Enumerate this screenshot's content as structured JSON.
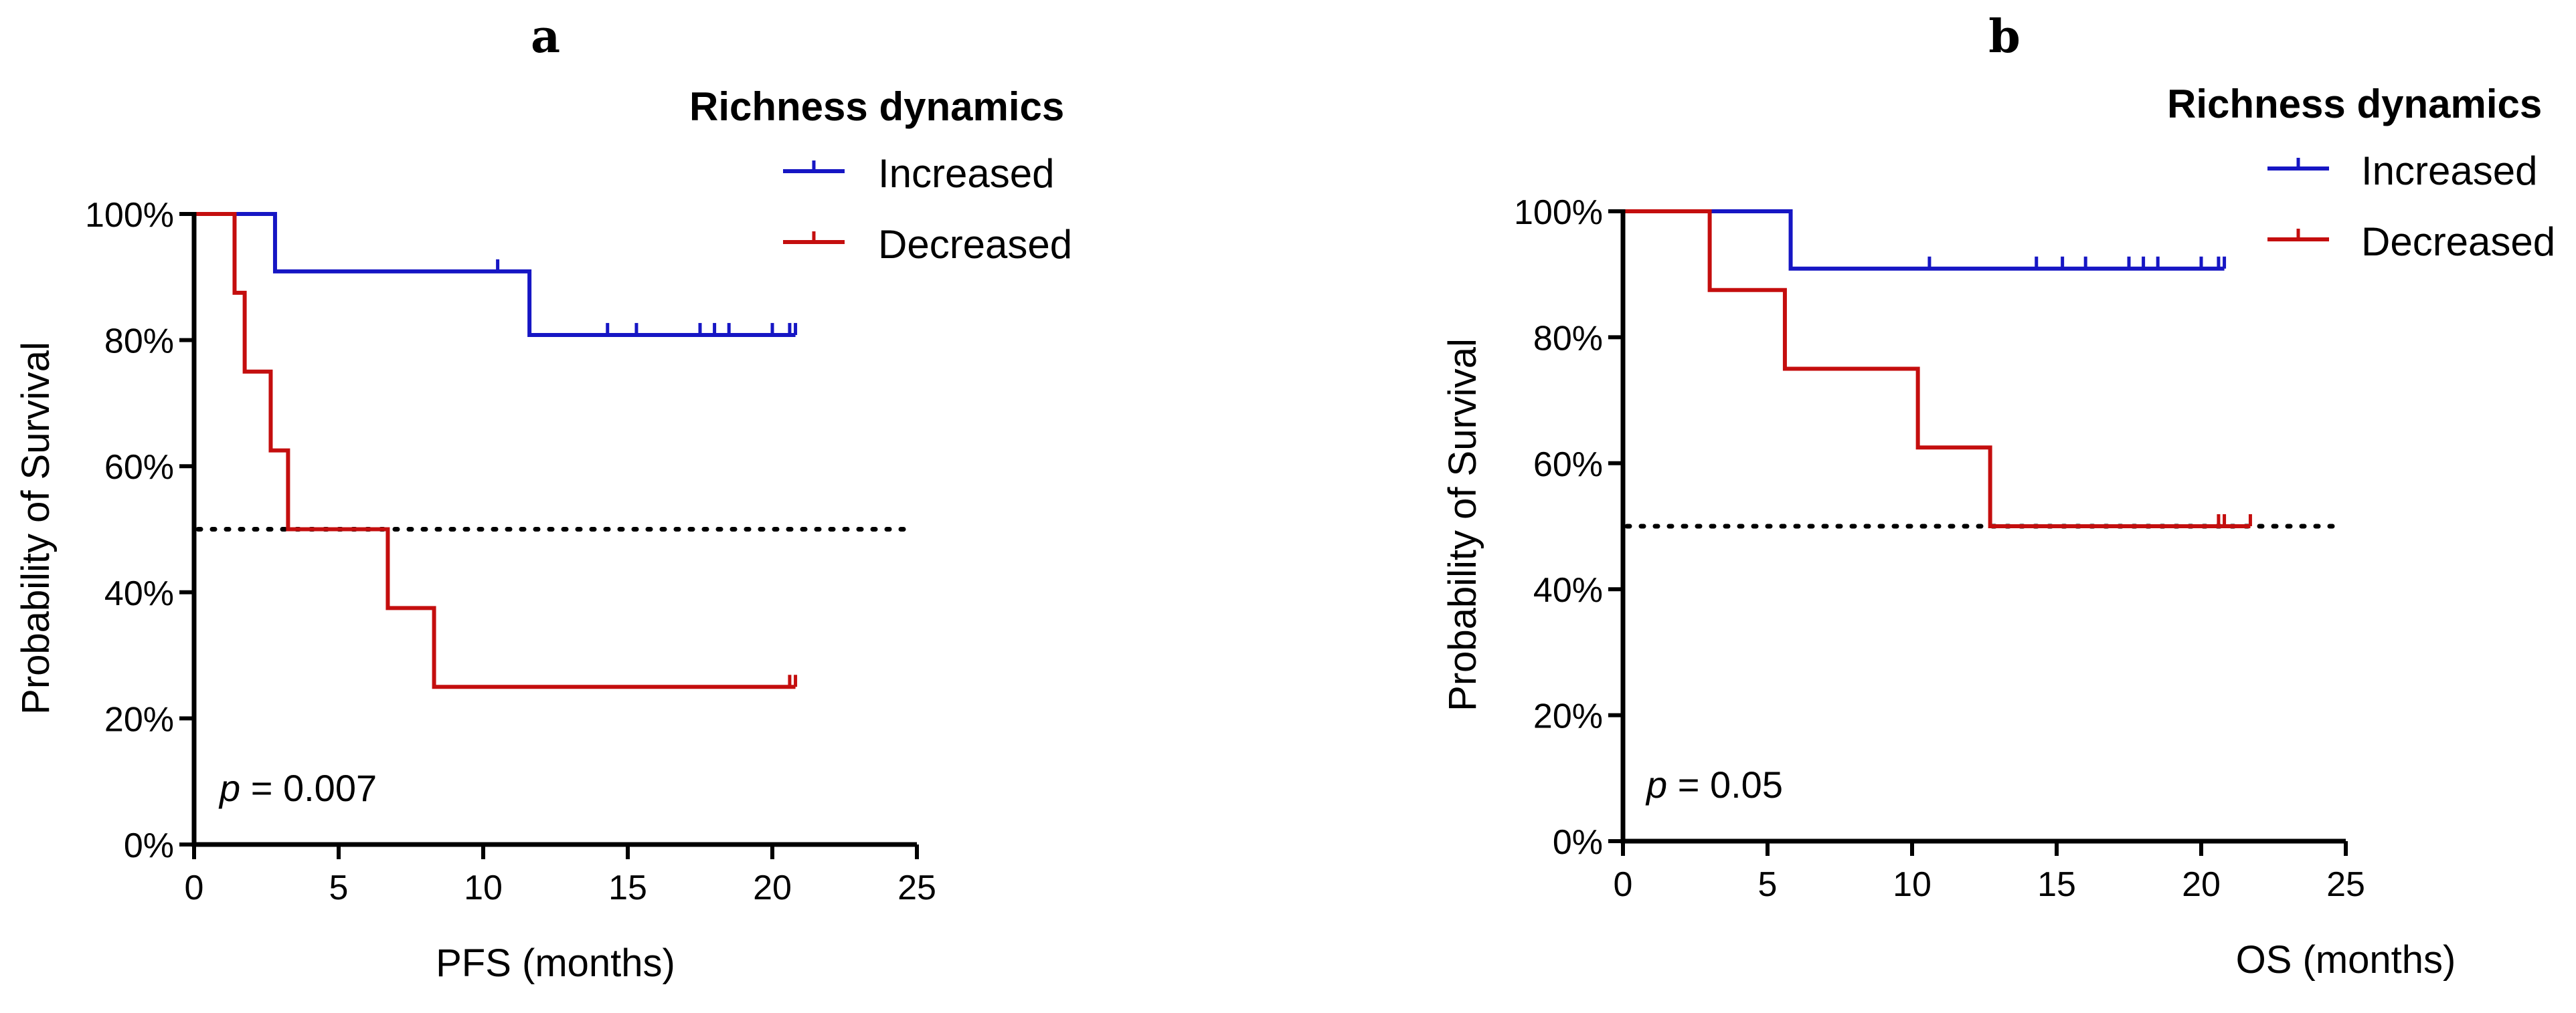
{
  "chart_data": [
    {
      "type": "line",
      "subtype": "kaplan-meier",
      "panel_label": "a",
      "title": "",
      "xlabel": "PFS (months)",
      "ylabel": "Probability of Survival",
      "xlim": [
        0,
        25
      ],
      "ylim": [
        0,
        100
      ],
      "xticks": [
        0,
        5,
        10,
        15,
        20,
        25
      ],
      "yticks": [
        0,
        20,
        40,
        60,
        80,
        100
      ],
      "ytick_suffix": "%",
      "reference_line": 50,
      "legend_title": "Richness dynamics",
      "annotation": {
        "p_symbol": "p",
        "p_text": " = 0.007"
      },
      "series": [
        {
          "name": "Increased",
          "color": "#1616c4",
          "steps": [
            [
              0,
              100
            ],
            [
              2.8,
              100
            ],
            [
              2.8,
              90.9
            ],
            [
              11.6,
              90.9
            ],
            [
              11.6,
              80.8
            ],
            [
              20.8,
              80.8
            ]
          ],
          "censored": [
            [
              10.5,
              90.9
            ],
            [
              14.3,
              80.8
            ],
            [
              15.3,
              80.8
            ],
            [
              17.5,
              80.8
            ],
            [
              18.0,
              80.8
            ],
            [
              18.5,
              80.8
            ],
            [
              20.0,
              80.8
            ],
            [
              20.6,
              80.8
            ],
            [
              20.8,
              80.8
            ]
          ]
        },
        {
          "name": "Decreased",
          "color": "#c40e0e",
          "steps": [
            [
              0,
              100
            ],
            [
              1.4,
              100
            ],
            [
              1.4,
              87.5
            ],
            [
              1.75,
              87.5
            ],
            [
              1.75,
              75
            ],
            [
              2.65,
              75
            ],
            [
              2.65,
              62.5
            ],
            [
              3.25,
              62.5
            ],
            [
              3.25,
              50
            ],
            [
              6.7,
              50
            ],
            [
              6.7,
              37.5
            ],
            [
              8.3,
              37.5
            ],
            [
              8.3,
              25
            ],
            [
              20.8,
              25
            ]
          ],
          "censored": [
            [
              20.6,
              25
            ],
            [
              20.8,
              25
            ]
          ]
        }
      ]
    },
    {
      "type": "line",
      "subtype": "kaplan-meier",
      "panel_label": "b",
      "title": "",
      "xlabel": "OS (months)",
      "ylabel": "Probability of Survival",
      "xlim": [
        0,
        25
      ],
      "ylim": [
        0,
        100
      ],
      "xticks": [
        0,
        5,
        10,
        15,
        20,
        25
      ],
      "yticks": [
        0,
        20,
        40,
        60,
        80,
        100
      ],
      "ytick_suffix": "%",
      "reference_line": 50,
      "legend_title": "Richness dynamics",
      "annotation": {
        "p_symbol": "p",
        "p_text": " = 0.05"
      },
      "series": [
        {
          "name": "Increased",
          "color": "#1616c4",
          "steps": [
            [
              0,
              100
            ],
            [
              5.8,
              100
            ],
            [
              5.8,
              90.9
            ],
            [
              20.8,
              90.9
            ]
          ],
          "censored": [
            [
              10.6,
              90.9
            ],
            [
              14.3,
              90.9
            ],
            [
              15.2,
              90.9
            ],
            [
              16.0,
              90.9
            ],
            [
              17.5,
              90.9
            ],
            [
              18.0,
              90.9
            ],
            [
              18.5,
              90.9
            ],
            [
              20.0,
              90.9
            ],
            [
              20.6,
              90.9
            ],
            [
              20.8,
              90.9
            ]
          ]
        },
        {
          "name": "Decreased",
          "color": "#c40e0e",
          "steps": [
            [
              0,
              100
            ],
            [
              3.0,
              100
            ],
            [
              3.0,
              87.5
            ],
            [
              5.6,
              87.5
            ],
            [
              5.6,
              75
            ],
            [
              10.2,
              75
            ],
            [
              10.2,
              62.5
            ],
            [
              12.7,
              62.5
            ],
            [
              12.7,
              50
            ],
            [
              21.7,
              50
            ]
          ],
          "censored": [
            [
              20.6,
              50
            ],
            [
              20.8,
              50
            ],
            [
              21.7,
              50
            ]
          ]
        }
      ]
    }
  ]
}
